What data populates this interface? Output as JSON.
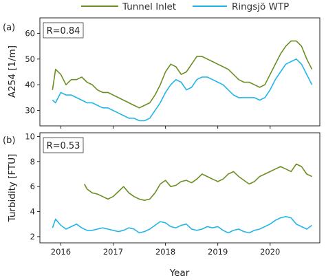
{
  "chart_data": [
    {
      "type": "line",
      "panel_label": "(a)",
      "annotation": "R=0.84",
      "ylabel": "A254 [1/m]",
      "xlabel": "",
      "xlim": [
        2015.6,
        2020.95
      ],
      "ylim": [
        24,
        66
      ],
      "yticks": [
        30,
        40,
        50,
        60
      ],
      "xticks": [
        2016,
        2017,
        2018,
        2019,
        2020
      ],
      "series": [
        {
          "name": "Tunnel Inlet",
          "color": "#6b8e23",
          "x": [
            2015.84,
            2015.9,
            2016.0,
            2016.1,
            2016.2,
            2016.3,
            2016.4,
            2016.5,
            2016.6,
            2016.7,
            2016.8,
            2016.9,
            2017.0,
            2017.1,
            2017.2,
            2017.3,
            2017.4,
            2017.5,
            2017.6,
            2017.7,
            2017.8,
            2017.9,
            2018.0,
            2018.1,
            2018.2,
            2018.3,
            2018.4,
            2018.5,
            2018.6,
            2018.7,
            2018.8,
            2018.9,
            2019.0,
            2019.1,
            2019.2,
            2019.3,
            2019.4,
            2019.5,
            2019.6,
            2019.7,
            2019.8,
            2019.9,
            2020.0,
            2020.1,
            2020.2,
            2020.3,
            2020.4,
            2020.5,
            2020.6,
            2020.7,
            2020.8
          ],
          "values": [
            38,
            46,
            44,
            40,
            42,
            42,
            43,
            41,
            40,
            38,
            37,
            37,
            36,
            35,
            34,
            33,
            32,
            31,
            32,
            33,
            36,
            40,
            45,
            48,
            47,
            44,
            45,
            48,
            51,
            51,
            50,
            49,
            48,
            47,
            46,
            44,
            42,
            41,
            41,
            40,
            39,
            40,
            44,
            48,
            52,
            55,
            57,
            57,
            55,
            50,
            46
          ]
        },
        {
          "name": "Ringsjö WTP",
          "color": "#21b5e8",
          "x": [
            2015.84,
            2015.9,
            2016.0,
            2016.1,
            2016.2,
            2016.3,
            2016.4,
            2016.5,
            2016.6,
            2016.7,
            2016.8,
            2016.9,
            2017.0,
            2017.1,
            2017.2,
            2017.3,
            2017.4,
            2017.5,
            2017.6,
            2017.7,
            2017.8,
            2017.9,
            2018.0,
            2018.1,
            2018.2,
            2018.3,
            2018.4,
            2018.5,
            2018.6,
            2018.7,
            2018.8,
            2018.9,
            2019.0,
            2019.1,
            2019.2,
            2019.3,
            2019.4,
            2019.5,
            2019.6,
            2019.7,
            2019.8,
            2019.9,
            2020.0,
            2020.1,
            2020.2,
            2020.3,
            2020.4,
            2020.5,
            2020.6,
            2020.7,
            2020.8
          ],
          "values": [
            34,
            33,
            37,
            36,
            36,
            35,
            34,
            33,
            33,
            32,
            31,
            31,
            30,
            29,
            28,
            27,
            27,
            26,
            26,
            27,
            30,
            33,
            37,
            40,
            42,
            41,
            38,
            39,
            42,
            43,
            43,
            42,
            41,
            40,
            38,
            36,
            35,
            35,
            35,
            35,
            34,
            35,
            38,
            42,
            45,
            48,
            49,
            50,
            48,
            44,
            40
          ]
        }
      ]
    },
    {
      "type": "line",
      "panel_label": "(b)",
      "annotation": "R=0.53",
      "ylabel": "Turbidity [FTU]",
      "xlabel": "Year",
      "xlim": [
        2015.6,
        2020.95
      ],
      "ylim": [
        1.5,
        10.3
      ],
      "yticks": [
        2,
        4,
        6,
        8,
        10
      ],
      "xticks": [
        2016,
        2017,
        2018,
        2019,
        2020
      ],
      "series": [
        {
          "name": "Tunnel Inlet",
          "color": "#6b8e23",
          "x": [
            2016.45,
            2016.5,
            2016.6,
            2016.7,
            2016.8,
            2016.9,
            2017.0,
            2017.1,
            2017.2,
            2017.3,
            2017.4,
            2017.5,
            2017.6,
            2017.7,
            2017.8,
            2017.9,
            2018.0,
            2018.1,
            2018.2,
            2018.3,
            2018.4,
            2018.5,
            2018.6,
            2018.7,
            2018.8,
            2018.9,
            2019.0,
            2019.1,
            2019.2,
            2019.3,
            2019.4,
            2019.5,
            2019.6,
            2019.7,
            2019.8,
            2019.9,
            2020.0,
            2020.1,
            2020.2,
            2020.3,
            2020.4,
            2020.5,
            2020.6,
            2020.7,
            2020.8
          ],
          "values": [
            6.2,
            5.8,
            5.5,
            5.4,
            5.2,
            5.0,
            5.2,
            5.6,
            6.0,
            5.5,
            5.2,
            5.0,
            4.9,
            5.0,
            5.5,
            6.2,
            6.5,
            6.0,
            6.1,
            6.4,
            6.5,
            6.3,
            6.6,
            7.0,
            6.8,
            6.6,
            6.4,
            6.6,
            7.0,
            7.2,
            6.8,
            6.5,
            6.2,
            6.4,
            6.8,
            7.0,
            7.2,
            7.4,
            7.6,
            7.4,
            7.2,
            7.8,
            7.6,
            7.0,
            6.8
          ]
        },
        {
          "name": "Ringsjö WTP",
          "color": "#21b5e8",
          "x": [
            2015.84,
            2015.9,
            2016.0,
            2016.1,
            2016.2,
            2016.3,
            2016.4,
            2016.5,
            2016.6,
            2016.7,
            2016.8,
            2016.9,
            2017.0,
            2017.1,
            2017.2,
            2017.3,
            2017.4,
            2017.5,
            2017.6,
            2017.7,
            2017.8,
            2017.9,
            2018.0,
            2018.1,
            2018.2,
            2018.3,
            2018.4,
            2018.5,
            2018.6,
            2018.7,
            2018.8,
            2018.9,
            2019.0,
            2019.1,
            2019.2,
            2019.3,
            2019.4,
            2019.5,
            2019.6,
            2019.7,
            2019.8,
            2019.9,
            2020.0,
            2020.1,
            2020.2,
            2020.3,
            2020.4,
            2020.5,
            2020.6,
            2020.7,
            2020.8
          ],
          "values": [
            2.7,
            3.4,
            2.9,
            2.6,
            2.8,
            3.0,
            2.7,
            2.5,
            2.5,
            2.6,
            2.7,
            2.6,
            2.5,
            2.4,
            2.5,
            2.7,
            2.6,
            2.3,
            2.4,
            2.6,
            2.9,
            3.2,
            3.1,
            2.8,
            2.7,
            2.9,
            3.0,
            2.6,
            2.5,
            2.6,
            2.8,
            2.7,
            2.8,
            2.5,
            2.3,
            2.5,
            2.6,
            2.4,
            2.3,
            2.5,
            2.6,
            2.8,
            3.0,
            3.3,
            3.5,
            3.6,
            3.5,
            3.0,
            2.8,
            2.6,
            2.9
          ]
        }
      ]
    }
  ],
  "legend": {
    "placement": "top",
    "items": [
      {
        "label": "Tunnel Inlet",
        "color": "#6b8e23"
      },
      {
        "label": "Ringsjö WTP",
        "color": "#21b5e8"
      }
    ]
  }
}
